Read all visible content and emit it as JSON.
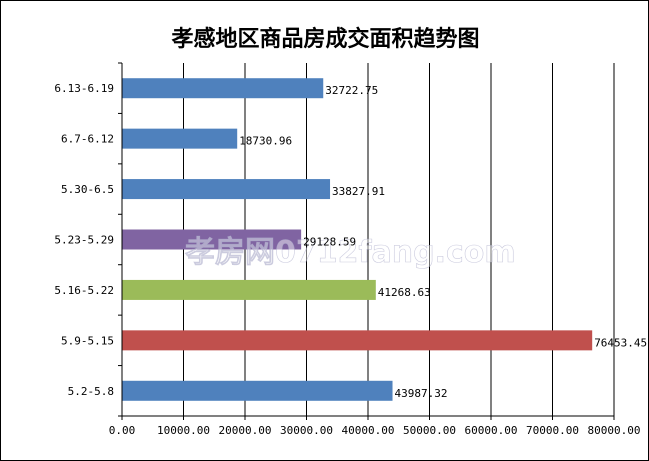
{
  "chart_data": {
    "type": "bar",
    "orientation": "horizontal",
    "title": "孝感地区商品房成交面积趋势图",
    "categories": [
      "6.13-6.19",
      "6.7-6.12",
      "5.30-6.5",
      "5.23-5.29",
      "5.16-5.22",
      "5.9-5.15",
      "5.2-5.8"
    ],
    "values": [
      32722.75,
      18730.96,
      33827.91,
      29128.59,
      41268.63,
      76453.45,
      43987.32
    ],
    "value_labels": [
      "32722.75",
      "18730.96",
      "33827.91",
      "29128.59",
      "41268.63",
      "76453.45",
      "43987.32"
    ],
    "bar_colors": [
      "#4f81bd",
      "#4f81bd",
      "#4f81bd",
      "#8064a2",
      "#9bbb59",
      "#c0504d",
      "#4f81bd"
    ],
    "xlim": [
      0,
      80000
    ],
    "xticks": [
      0,
      10000,
      20000,
      30000,
      40000,
      50000,
      60000,
      70000,
      80000
    ],
    "xtick_labels": [
      "0.00",
      "10000.00",
      "20000.00",
      "30000.00",
      "40000.00",
      "50000.00",
      "60000.00",
      "70000.00",
      "80000.00"
    ],
    "grid": "vertical",
    "legend": "none"
  },
  "watermark": "孝房网0712fang.com"
}
